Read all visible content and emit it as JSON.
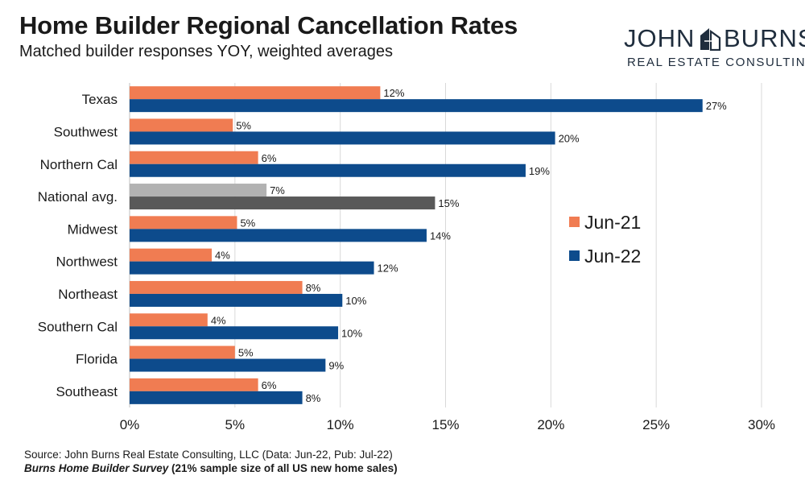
{
  "header": {
    "title": "Home Builder Regional Cancellation Rates",
    "subtitle": "Matched builder responses YOY, weighted averages"
  },
  "logo": {
    "word_left": "JOHN",
    "word_right": "BURNS",
    "tagline": "REAL ESTATE CONSULTING"
  },
  "footer": {
    "source": "Source: John Burns Real Estate Consulting, LLC (Data: Jun-22, Pub: Jul-22)",
    "survey_name": "Burns Home Builder Survey",
    "survey_note": " (21% sample size of all US new home sales)"
  },
  "chart_data": {
    "type": "bar",
    "orientation": "horizontal",
    "title": "Home Builder Regional Cancellation Rates",
    "subtitle": "Matched builder responses YOY, weighted averages",
    "categories": [
      "Texas",
      "Southwest",
      "Northern Cal",
      "National avg.",
      "Midwest",
      "Northwest",
      "Northeast",
      "Southern Cal",
      "Florida",
      "Southeast"
    ],
    "series": [
      {
        "name": "Jun-21",
        "color": "#f07c52",
        "highlight_color": "#b2b2b2",
        "values": [
          11.9,
          4.9,
          6.1,
          6.5,
          5.1,
          3.9,
          8.2,
          3.7,
          5.0,
          6.1
        ],
        "labels": [
          "12%",
          "5%",
          "6%",
          "7%",
          "5%",
          "4%",
          "8%",
          "4%",
          "5%",
          "6%"
        ]
      },
      {
        "name": "Jun-22",
        "color": "#0d4b8c",
        "highlight_color": "#595959",
        "values": [
          27.2,
          20.2,
          18.8,
          14.5,
          14.1,
          11.6,
          10.1,
          9.9,
          9.3,
          8.2
        ],
        "labels": [
          "27%",
          "20%",
          "19%",
          "15%",
          "14%",
          "12%",
          "10%",
          "10%",
          "9%",
          "8%"
        ]
      }
    ],
    "highlight_category": "National avg.",
    "xlim": [
      0,
      30
    ],
    "xticks": [
      0,
      5,
      10,
      15,
      20,
      25,
      30
    ],
    "xtick_labels": [
      "0%",
      "5%",
      "10%",
      "15%",
      "20%",
      "25%",
      "30%"
    ],
    "grid": true,
    "legend": {
      "position": "right",
      "entries": [
        "Jun-21",
        "Jun-22"
      ]
    }
  }
}
